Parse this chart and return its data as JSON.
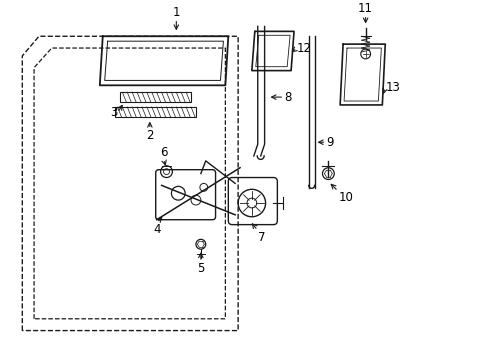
{
  "bg_color": "#ffffff",
  "line_color": "#1a1a1a",
  "figsize": [
    4.89,
    3.6
  ],
  "dpi": 100
}
